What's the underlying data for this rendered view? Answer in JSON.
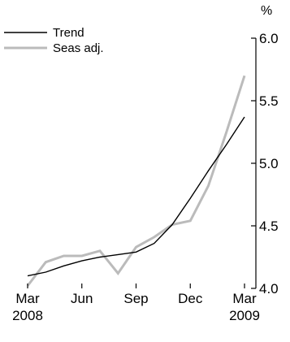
{
  "chart_data": {
    "type": "line",
    "title": "",
    "xlabel": "",
    "ylabel": "%",
    "ylim": [
      4.0,
      6.0
    ],
    "yticks": [
      {
        "value": 4.0,
        "label": "4.0"
      },
      {
        "value": 4.5,
        "label": "4.5"
      },
      {
        "value": 5.0,
        "label": "5.0"
      },
      {
        "value": 5.5,
        "label": "5.5"
      },
      {
        "value": 6.0,
        "label": "6.0"
      }
    ],
    "x": [
      "Mar 2008",
      "Apr 2008",
      "May 2008",
      "Jun 2008",
      "Jul 2008",
      "Aug 2008",
      "Sep 2008",
      "Oct 2008",
      "Nov 2008",
      "Dec 2008",
      "Jan 2009",
      "Feb 2009",
      "Mar 2009"
    ],
    "xticks": [
      {
        "index": 0,
        "month": "Mar",
        "year": "2008"
      },
      {
        "index": 3,
        "month": "Jun",
        "year": ""
      },
      {
        "index": 6,
        "month": "Sep",
        "year": ""
      },
      {
        "index": 9,
        "month": "Dec",
        "year": ""
      },
      {
        "index": 12,
        "month": "Mar",
        "year": "2009"
      }
    ],
    "series": [
      {
        "name": "Trend",
        "color": "#000000",
        "values": [
          4.1,
          4.13,
          4.18,
          4.22,
          4.25,
          4.27,
          4.29,
          4.36,
          4.51,
          4.72,
          4.94,
          5.15,
          5.37
        ]
      },
      {
        "name": "Seas adj.",
        "color": "#bbbbbb",
        "values": [
          4.02,
          4.21,
          4.26,
          4.26,
          4.3,
          4.12,
          4.33,
          4.41,
          4.51,
          4.54,
          4.82,
          5.25,
          5.7
        ]
      }
    ],
    "legend_position": "top-left",
    "grid": false
  }
}
